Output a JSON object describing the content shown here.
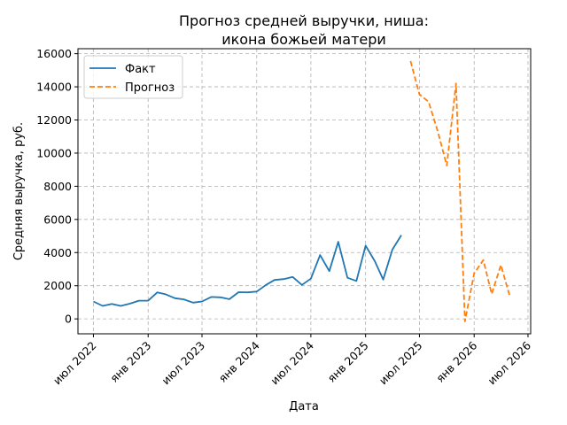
{
  "chart_data": {
    "type": "line",
    "title_lines": [
      "Прогноз средней выручки, ниша:",
      "икона божьей матери"
    ],
    "xlabel": "Дата",
    "ylabel": "Средняя выручка, руб.",
    "ylim": [
      -900,
      16300
    ],
    "xlim": [
      "2022-05-10",
      "2026-07-10"
    ],
    "yticks": [
      0,
      2000,
      4000,
      6000,
      8000,
      10000,
      12000,
      14000,
      16000
    ],
    "xticks": [
      {
        "date": "2022-07-01",
        "label": "июл 2022"
      },
      {
        "date": "2023-01-01",
        "label": "янв 2023"
      },
      {
        "date": "2023-07-01",
        "label": "июл 2023"
      },
      {
        "date": "2024-01-01",
        "label": "янв 2024"
      },
      {
        "date": "2024-07-01",
        "label": "июл 2024"
      },
      {
        "date": "2025-01-01",
        "label": "янв 2025"
      },
      {
        "date": "2025-07-01",
        "label": "июл 2025"
      },
      {
        "date": "2026-01-01",
        "label": "янв 2026"
      },
      {
        "date": "2026-07-01",
        "label": "июл 2026"
      }
    ],
    "grid": true,
    "legend_position": "top-left",
    "series": [
      {
        "name": "Факт",
        "style": "solid",
        "color": "#1f77b4",
        "x": [
          "2022-07-01",
          "2022-08-01",
          "2022-09-01",
          "2022-10-01",
          "2022-11-01",
          "2022-12-01",
          "2023-01-01",
          "2023-02-01",
          "2023-03-01",
          "2023-04-01",
          "2023-05-01",
          "2023-06-01",
          "2023-07-01",
          "2023-08-01",
          "2023-09-01",
          "2023-10-01",
          "2023-11-01",
          "2023-12-01",
          "2024-01-01",
          "2024-02-01",
          "2024-03-01",
          "2024-04-01",
          "2024-05-01",
          "2024-06-01",
          "2024-07-01",
          "2024-08-01",
          "2024-09-01",
          "2024-10-01",
          "2024-11-01",
          "2024-12-01",
          "2025-01-01",
          "2025-02-01",
          "2025-03-01",
          "2025-04-01",
          "2025-05-01"
        ],
        "y": [
          1050,
          780,
          900,
          780,
          920,
          1100,
          1100,
          1600,
          1480,
          1250,
          1180,
          980,
          1050,
          1320,
          1300,
          1190,
          1610,
          1600,
          1650,
          2050,
          2350,
          2400,
          2530,
          2050,
          2430,
          3850,
          2880,
          4650,
          2480,
          2290,
          4420,
          3480,
          2370,
          4180,
          5050
        ]
      },
      {
        "name": "Прогноз",
        "style": "dashed",
        "color": "#ff7f0e",
        "x": [
          "2025-06-01",
          "2025-07-01",
          "2025-08-01",
          "2025-09-01",
          "2025-10-01",
          "2025-11-01",
          "2025-12-01",
          "2026-01-01",
          "2026-02-01",
          "2026-03-01",
          "2026-04-01",
          "2026-05-01",
          "2026-06-01"
        ],
        "y": [
          15550,
          13550,
          13100,
          11300,
          9250,
          14200,
          -150,
          2750,
          3550,
          1500,
          3250,
          1350,
          null
        ],
        "note": "forecast shown from one month after last fact"
      }
    ]
  }
}
